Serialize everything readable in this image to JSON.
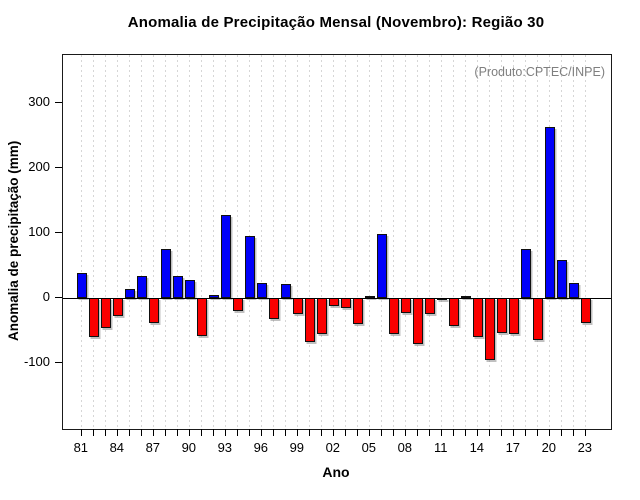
{
  "chart_data": {
    "type": "bar",
    "title": "Anomalia de Precipitação Mensal (Novembro): Região 30",
    "xlabel": "Ano",
    "ylabel": "Anomalia de precipitação (mm)",
    "annotation": "(Produto:CPTEC/INPE)",
    "ylim": [
      -200,
      370
    ],
    "yticks": [
      300,
      200,
      100,
      0,
      -100
    ],
    "grid": "vertical-dotted",
    "legend": "none",
    "bar_colors": {
      "positive": "#0000fa",
      "negative": "#fa0000"
    },
    "categories": [
      "81",
      "82",
      "83",
      "84",
      "85",
      "86",
      "87",
      "88",
      "89",
      "90",
      "91",
      "92",
      "93",
      "94",
      "95",
      "96",
      "97",
      "98",
      "99",
      "00",
      "01",
      "02",
      "03",
      "04",
      "05",
      "06",
      "07",
      "08",
      "09",
      "10",
      "11",
      "12",
      "13",
      "14",
      "15",
      "16",
      "17",
      "18",
      "19",
      "20",
      "21",
      "22",
      "23"
    ],
    "values": [
      38,
      -60,
      -46,
      -27,
      14,
      34,
      -38,
      75,
      34,
      28,
      -58,
      4,
      128,
      -20,
      96,
      23,
      -32,
      21,
      -25,
      -68,
      -55,
      -12,
      -15,
      -40,
      3,
      99,
      -56,
      -23,
      -70,
      -24,
      -2,
      -43,
      3,
      -60,
      -96,
      -54,
      -55,
      75,
      -65,
      263,
      59,
      23,
      -38
    ],
    "x_shown_tick_labels": [
      "81",
      "84",
      "87",
      "90",
      "93",
      "96",
      "99",
      "02",
      "05",
      "08",
      "11",
      "14",
      "17",
      "20",
      "23"
    ]
  }
}
